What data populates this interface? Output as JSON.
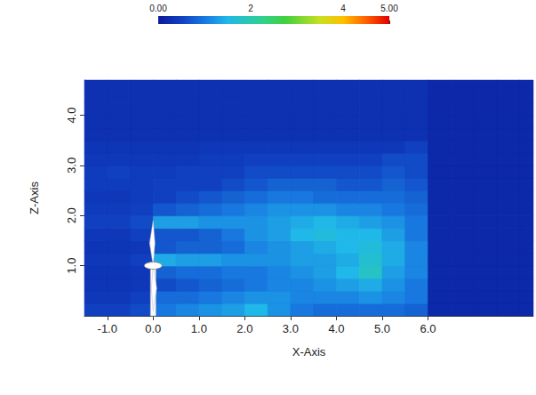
{
  "chart_data": {
    "type": "heatmap",
    "xlabel": "X-Axis",
    "ylabel": "Z-Axis",
    "xlim": [
      -1.5,
      8.3
    ],
    "ylim": [
      0,
      4.7
    ],
    "xticks": [
      {
        "value": -1,
        "label": "-1.0"
      },
      {
        "value": 0,
        "label": "0.0"
      },
      {
        "value": 1,
        "label": "1.0"
      },
      {
        "value": 2,
        "label": "2.0"
      },
      {
        "value": 3,
        "label": "3.0"
      },
      {
        "value": 4,
        "label": "4.0"
      },
      {
        "value": 5,
        "label": "5.0"
      },
      {
        "value": 6,
        "label": "6.0"
      }
    ],
    "yticks": [
      {
        "value": 1,
        "label": "1.0"
      },
      {
        "value": 2,
        "label": "2.0"
      },
      {
        "value": 3,
        "label": "3.0"
      },
      {
        "value": 4,
        "label": "4.0"
      }
    ],
    "grid": false,
    "cells": {
      "x_edges": [
        -1.5,
        -1.0,
        -0.5,
        0.0,
        0.5,
        1.0,
        1.5,
        2.0,
        2.5,
        3.0,
        3.5,
        4.0,
        4.5,
        5.0,
        5.5,
        6.0,
        6.5,
        7.0,
        7.5,
        8.0,
        8.5
      ],
      "z_edges": [
        0.0,
        0.25,
        0.5,
        0.75,
        1.0,
        1.25,
        1.5,
        1.75,
        2.0,
        2.25,
        2.5,
        2.75,
        3.0,
        3.25,
        3.5,
        3.75,
        4.0,
        4.25,
        4.5,
        4.75
      ],
      "values": [
        [
          0.5,
          0.5,
          0.6,
          1.0,
          1.1,
          1.2,
          1.3,
          1.5,
          1.2,
          1.0,
          0.9,
          0.9,
          0.9,
          0.9,
          0.8,
          0.2,
          0.2,
          0.2,
          0.2,
          0.2
        ],
        [
          0.4,
          0.4,
          0.5,
          0.9,
          0.9,
          1.0,
          1.1,
          1.2,
          1.2,
          1.1,
          1.1,
          1.1,
          1.2,
          1.1,
          1.0,
          0.2,
          0.2,
          0.2,
          0.2,
          0.2
        ],
        [
          0.35,
          0.35,
          0.4,
          0.6,
          0.7,
          0.8,
          0.9,
          1.0,
          1.1,
          1.1,
          1.2,
          1.3,
          1.4,
          1.2,
          1.0,
          0.2,
          0.2,
          0.2,
          0.2,
          0.2
        ],
        [
          0.35,
          0.35,
          0.4,
          0.8,
          0.9,
          0.9,
          1.0,
          1.0,
          1.1,
          1.2,
          1.3,
          1.5,
          1.8,
          1.3,
          1.1,
          0.2,
          0.2,
          0.2,
          0.2,
          0.2
        ],
        [
          0.4,
          0.4,
          0.5,
          1.4,
          1.3,
          1.3,
          1.2,
          1.2,
          1.2,
          1.3,
          1.3,
          1.4,
          1.7,
          1.4,
          1.1,
          0.2,
          0.2,
          0.2,
          0.2,
          0.2
        ],
        [
          0.35,
          0.35,
          0.4,
          0.7,
          0.8,
          0.8,
          0.9,
          1.1,
          1.2,
          1.3,
          1.4,
          1.5,
          1.6,
          1.4,
          1.1,
          0.2,
          0.2,
          0.2,
          0.2,
          0.2
        ],
        [
          0.4,
          0.4,
          0.5,
          0.7,
          0.7,
          0.8,
          1.0,
          1.2,
          1.3,
          1.5,
          1.6,
          1.5,
          1.5,
          1.3,
          1.0,
          0.2,
          0.2,
          0.2,
          0.2,
          0.2
        ],
        [
          0.5,
          0.5,
          0.6,
          1.3,
          1.3,
          1.2,
          1.2,
          1.2,
          1.3,
          1.4,
          1.5,
          1.4,
          1.3,
          1.2,
          1.0,
          0.2,
          0.2,
          0.2,
          0.2,
          0.2
        ],
        [
          0.45,
          0.45,
          0.5,
          0.7,
          0.8,
          0.9,
          1.0,
          1.1,
          1.2,
          1.2,
          1.2,
          1.1,
          1.1,
          1.0,
          0.9,
          0.2,
          0.2,
          0.2,
          0.2,
          0.2
        ],
        [
          0.4,
          0.4,
          0.45,
          0.5,
          0.6,
          0.7,
          0.8,
          0.9,
          1.0,
          1.0,
          0.9,
          0.9,
          0.9,
          0.9,
          0.8,
          0.2,
          0.2,
          0.2,
          0.2,
          0.2
        ],
        [
          0.45,
          0.45,
          0.45,
          0.5,
          0.5,
          0.5,
          0.6,
          0.7,
          0.8,
          0.8,
          0.8,
          0.7,
          0.7,
          0.8,
          0.7,
          0.2,
          0.2,
          0.2,
          0.2,
          0.2
        ],
        [
          0.45,
          0.5,
          0.45,
          0.45,
          0.5,
          0.5,
          0.5,
          0.6,
          0.6,
          0.6,
          0.6,
          0.6,
          0.6,
          0.7,
          0.6,
          0.2,
          0.2,
          0.2,
          0.2,
          0.2
        ],
        [
          0.4,
          0.4,
          0.4,
          0.4,
          0.4,
          0.45,
          0.45,
          0.5,
          0.5,
          0.5,
          0.5,
          0.5,
          0.5,
          0.6,
          0.6,
          0.2,
          0.2,
          0.2,
          0.2,
          0.2
        ],
        [
          0.35,
          0.35,
          0.35,
          0.35,
          0.35,
          0.4,
          0.4,
          0.4,
          0.4,
          0.4,
          0.4,
          0.4,
          0.4,
          0.4,
          0.5,
          0.2,
          0.2,
          0.2,
          0.2,
          0.2
        ],
        [
          0.3,
          0.3,
          0.3,
          0.3,
          0.3,
          0.3,
          0.3,
          0.3,
          0.3,
          0.3,
          0.3,
          0.3,
          0.3,
          0.3,
          0.3,
          0.2,
          0.2,
          0.2,
          0.2,
          0.2
        ],
        [
          0.3,
          0.3,
          0.3,
          0.3,
          0.3,
          0.3,
          0.3,
          0.3,
          0.3,
          0.3,
          0.3,
          0.3,
          0.3,
          0.3,
          0.3,
          0.2,
          0.2,
          0.2,
          0.2,
          0.2
        ],
        [
          0.3,
          0.3,
          0.3,
          0.3,
          0.3,
          0.3,
          0.3,
          0.3,
          0.3,
          0.3,
          0.3,
          0.3,
          0.3,
          0.3,
          0.3,
          0.2,
          0.2,
          0.2,
          0.2,
          0.2
        ],
        [
          0.3,
          0.3,
          0.3,
          0.3,
          0.3,
          0.3,
          0.3,
          0.3,
          0.3,
          0.3,
          0.3,
          0.3,
          0.3,
          0.3,
          0.3,
          0.2,
          0.2,
          0.2,
          0.2,
          0.2
        ],
        [
          0.3,
          0.3,
          0.3,
          0.3,
          0.3,
          0.3,
          0.3,
          0.3,
          0.3,
          0.3,
          0.3,
          0.3,
          0.3,
          0.3,
          0.3,
          0.2,
          0.2,
          0.2,
          0.2,
          0.2
        ]
      ]
    },
    "colorbar": {
      "range": [
        0,
        5
      ],
      "ticks": [
        {
          "value": 0,
          "label": "0.00"
        },
        2,
        4,
        {
          "value": 5,
          "label": "5.00"
        }
      ]
    },
    "turbine": {
      "x": 0.0,
      "hub_height": 1.0,
      "rotor_radius": 0.9
    }
  }
}
